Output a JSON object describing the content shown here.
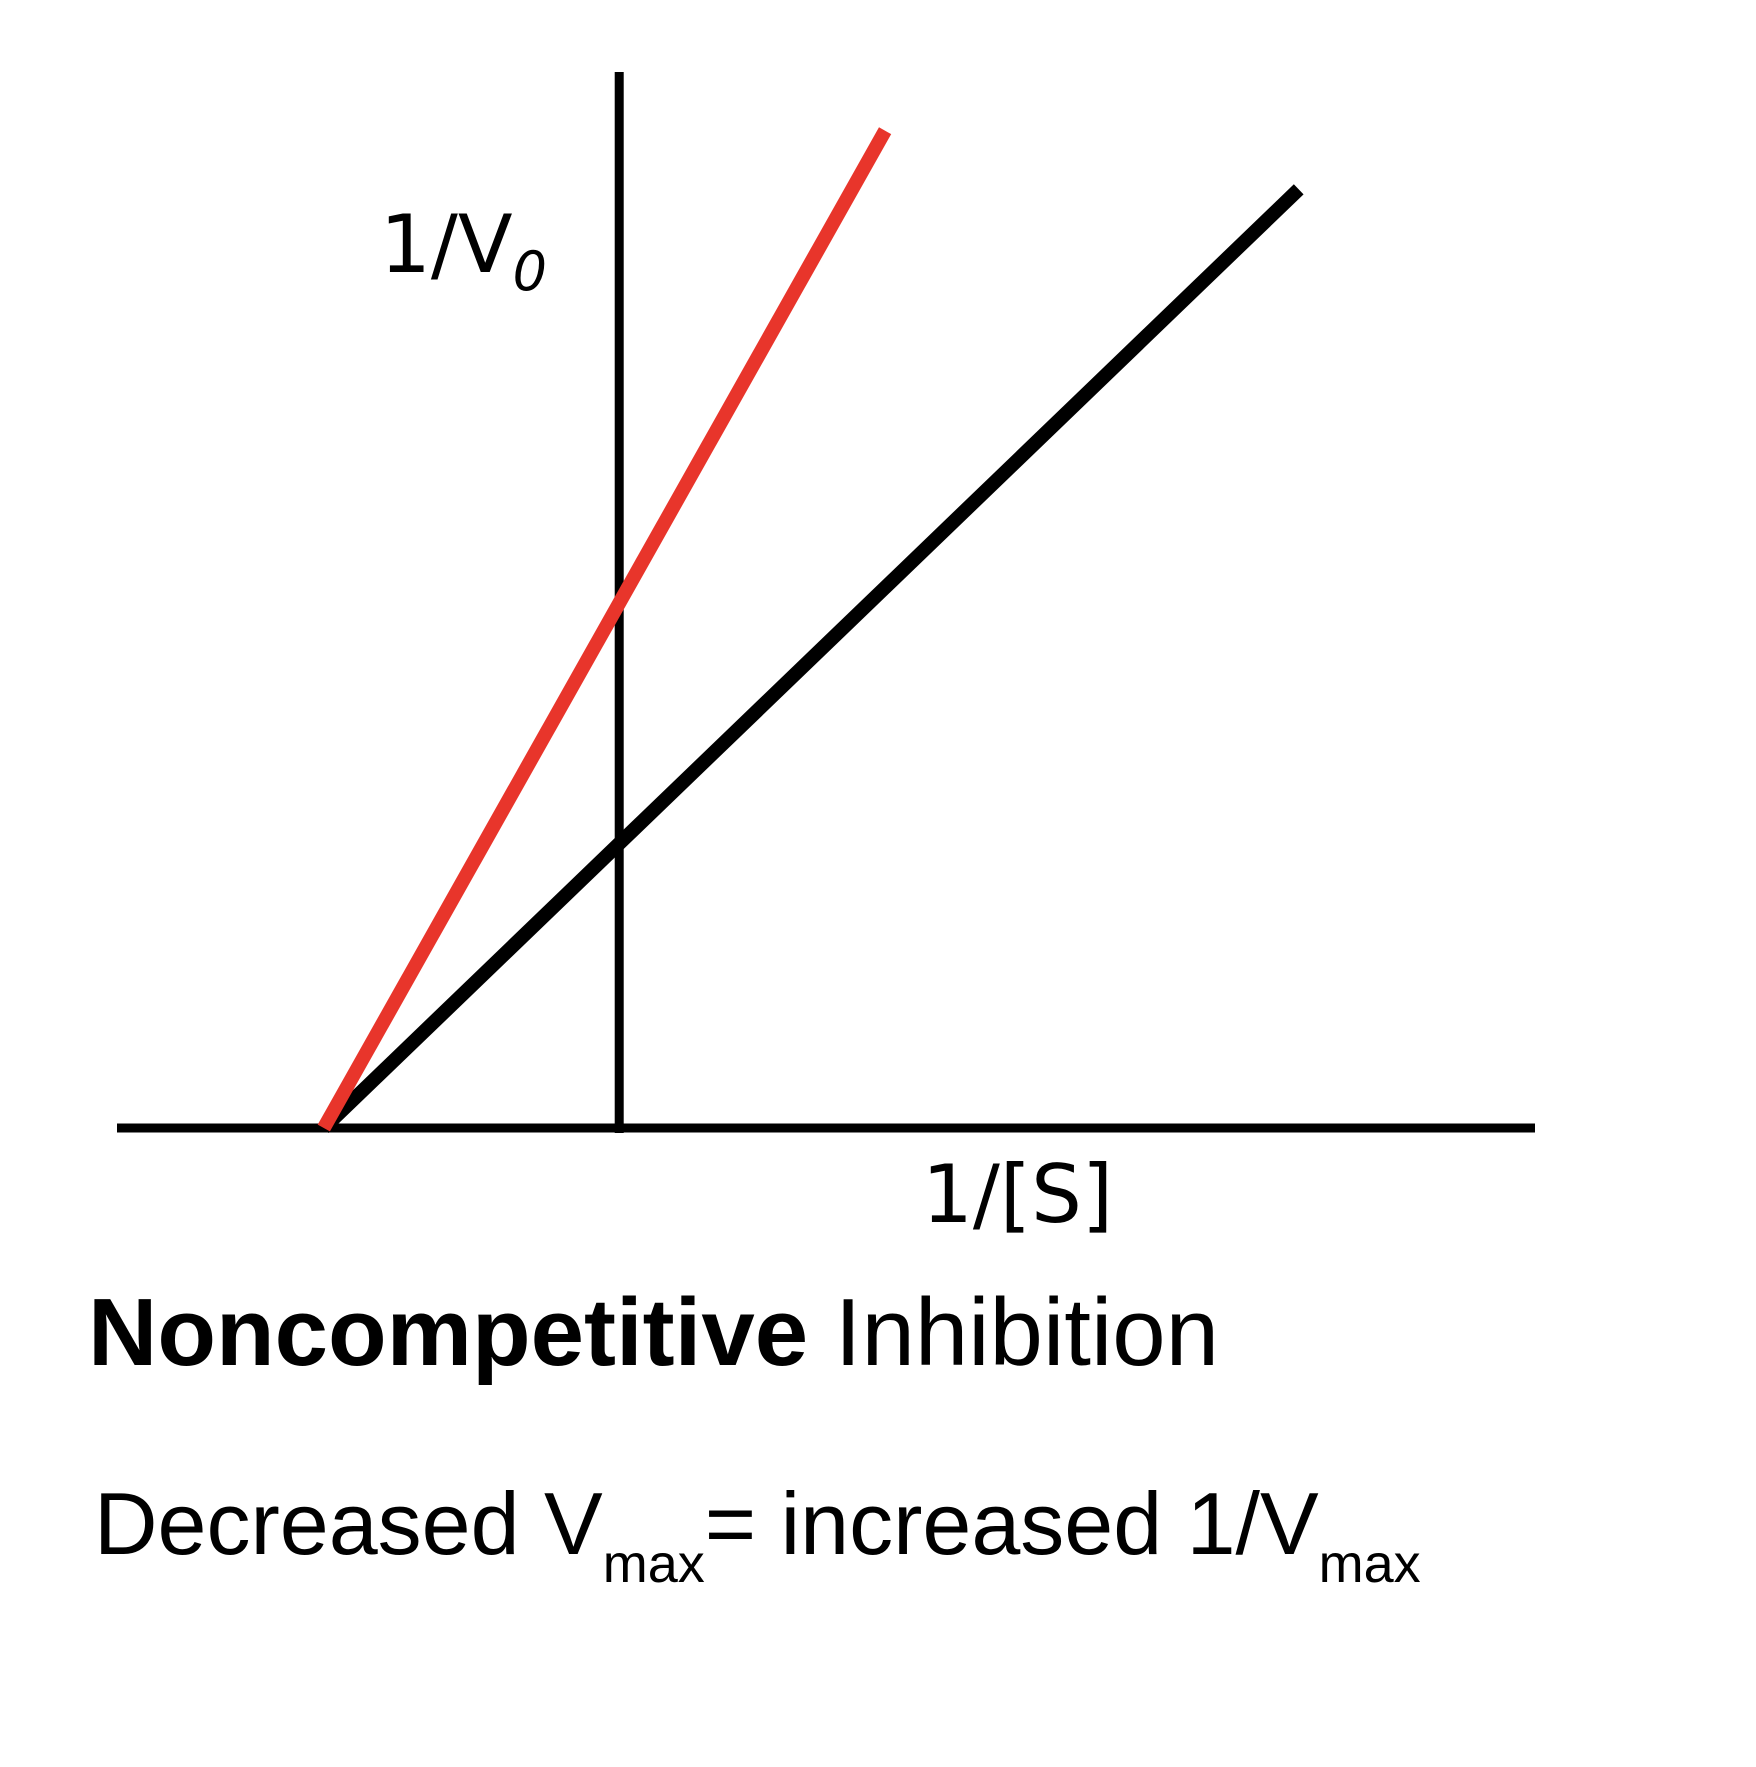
{
  "colors": {
    "inhibited": "#e8352b",
    "uninhibited": "#000000",
    "axis": "#000000"
  },
  "chart_data": {
    "type": "line",
    "title": "Noncompetitive Inhibition",
    "title_parts": {
      "bold": "Noncompetitive",
      "regular": "Inhibition"
    },
    "ylabel": {
      "main": "1/V",
      "sub": "0"
    },
    "xlabel": "1/[S]",
    "xlim": [
      -1.7,
      3.1
    ],
    "ylim": [
      0,
      3.6
    ],
    "grid": false,
    "legend": "none",
    "series": [
      {
        "color_key": "inhibited",
        "x": [
          -1.0,
          0.9
        ],
        "y": [
          0.0,
          3.4
        ]
      },
      {
        "color_key": "uninhibited",
        "x": [
          -1.0,
          2.3
        ],
        "y": [
          0.0,
          3.2
        ]
      }
    ]
  },
  "caption": {
    "part1": "Decreased V",
    "sub1": "max",
    "part2": "= increased 1/V",
    "sub2": "max"
  }
}
